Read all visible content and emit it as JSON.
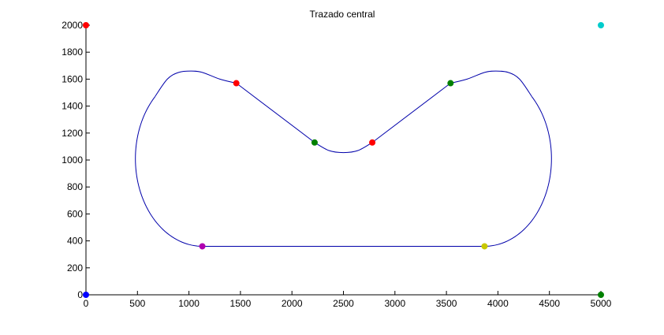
{
  "chart_data": {
    "type": "line",
    "title": "Trazado central",
    "xlabel": "",
    "ylabel": "",
    "xlim": [
      0,
      5000
    ],
    "ylim": [
      0,
      2000
    ],
    "xticks": [
      0,
      500,
      1000,
      1500,
      2000,
      2500,
      3000,
      3500,
      4000,
      4500,
      5000
    ],
    "yticks": [
      0,
      200,
      400,
      600,
      800,
      1000,
      1200,
      1400,
      1600,
      1800,
      2000
    ],
    "grid": false,
    "legend": "none",
    "series": [
      {
        "color": "#0000aa",
        "segments": [
          {
            "kind": "line",
            "from": [
              1130,
              360
            ],
            "to": [
              3870,
              360
            ]
          },
          {
            "kind": "arc",
            "center": [
              3870,
              1010
            ],
            "radius": 650,
            "start_deg": -90,
            "end_deg": 45
          },
          {
            "kind": "curve",
            "points": [
              [
                4330,
                1470
              ],
              [
                4210,
                1600
              ],
              [
                4100,
                1650
              ],
              [
                3980,
                1660
              ],
              [
                3870,
                1650
              ],
              [
                3700,
                1600
              ],
              [
                3540,
                1570
              ]
            ]
          },
          {
            "kind": "line",
            "from": [
              3540,
              1570
            ],
            "to": [
              2780,
              1130
            ]
          },
          {
            "kind": "curve",
            "points": [
              [
                2780,
                1130
              ],
              [
                2640,
                1070
              ],
              [
                2500,
                1055
              ],
              [
                2360,
                1070
              ],
              [
                2220,
                1130
              ]
            ]
          },
          {
            "kind": "line",
            "from": [
              2220,
              1130
            ],
            "to": [
              1460,
              1570
            ]
          },
          {
            "kind": "curve",
            "points": [
              [
                1460,
                1570
              ],
              [
                1300,
                1600
              ],
              [
                1130,
                1650
              ],
              [
                1020,
                1660
              ],
              [
                900,
                1650
              ],
              [
                790,
                1600
              ],
              [
                670,
                1470
              ]
            ]
          },
          {
            "kind": "arc",
            "center": [
              1130,
              1010
            ],
            "radius": 650,
            "start_deg": 135,
            "end_deg": 270
          }
        ]
      }
    ],
    "markers": [
      {
        "x": 0,
        "y": 2000,
        "color": "#ff0000"
      },
      {
        "x": 0,
        "y": 0,
        "color": "#0000ff"
      },
      {
        "x": 5000,
        "y": 2000,
        "color": "#00cccc"
      },
      {
        "x": 5000,
        "y": 0,
        "color": "#008000"
      },
      {
        "x": 1460,
        "y": 1570,
        "color": "#ff0000"
      },
      {
        "x": 2220,
        "y": 1130,
        "color": "#008000"
      },
      {
        "x": 2780,
        "y": 1130,
        "color": "#ff0000"
      },
      {
        "x": 3540,
        "y": 1570,
        "color": "#008000"
      },
      {
        "x": 1130,
        "y": 360,
        "color": "#b000b0"
      },
      {
        "x": 3870,
        "y": 360,
        "color": "#c8c800"
      }
    ]
  }
}
